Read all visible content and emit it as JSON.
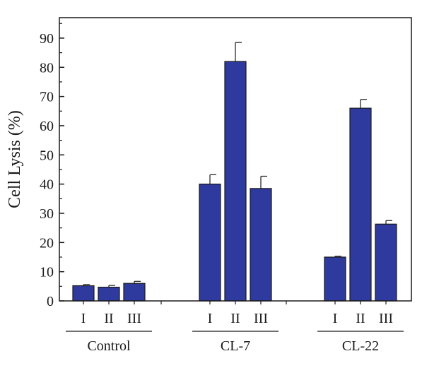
{
  "chart_data": {
    "type": "bar",
    "title": "",
    "xlabel": "",
    "ylabel": "Cell Lysis (%)",
    "ylim": [
      0,
      97
    ],
    "yticks": [
      0,
      10,
      20,
      30,
      40,
      50,
      60,
      70,
      80,
      90
    ],
    "grid": false,
    "bar_color": "#2e3a9e",
    "groups": [
      {
        "name": "Control",
        "categories": [
          "I",
          "II",
          "III"
        ],
        "values": [
          5.2,
          4.7,
          6.0
        ],
        "errors": [
          0.4,
          0.6,
          0.7
        ]
      },
      {
        "name": "CL-7",
        "categories": [
          "I",
          "II",
          "III"
        ],
        "values": [
          40.0,
          82.0,
          38.5
        ],
        "errors": [
          3.2,
          6.5,
          4.2
        ]
      },
      {
        "name": "CL-22",
        "categories": [
          "I",
          "II",
          "III"
        ],
        "values": [
          15.0,
          66.0,
          26.3
        ],
        "errors": [
          0.3,
          3.0,
          1.2
        ]
      }
    ]
  }
}
